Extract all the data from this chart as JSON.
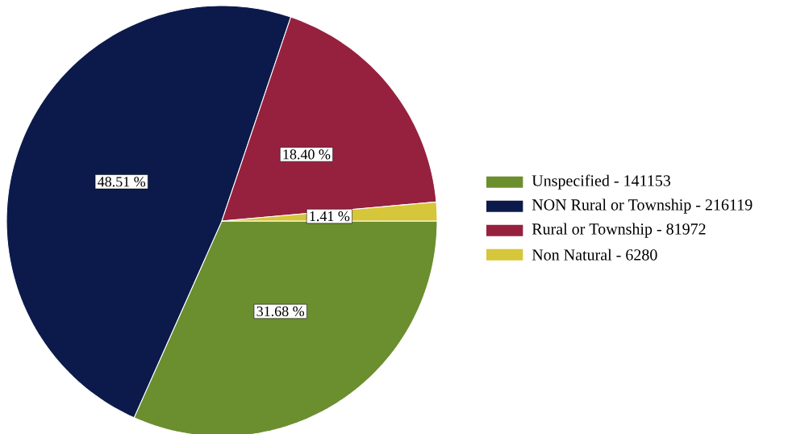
{
  "chart_data": {
    "type": "pie",
    "categories": [
      "Unspecified - 141153",
      "NON Rural or Township - 216119",
      "Rural or Township - 81972",
      "Non Natural - 6280"
    ],
    "values": [
      31.68,
      48.51,
      18.4,
      1.41
    ],
    "colors": [
      "#6b8e2f",
      "#0c1a4b",
      "#96213f",
      "#d6c63a"
    ],
    "value_labels": [
      "31.68 %",
      "48.51 %",
      "18.40 %",
      "1.41 %"
    ],
    "legend": "right"
  }
}
